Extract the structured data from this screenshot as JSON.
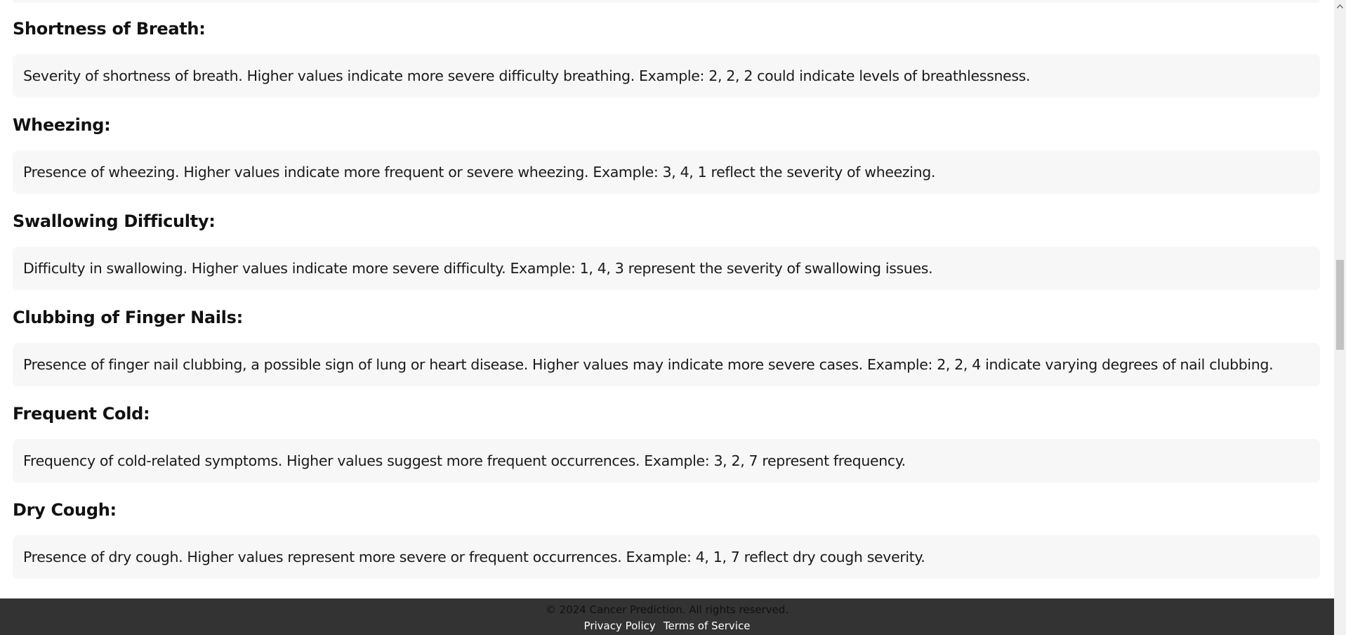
{
  "sections": [
    {
      "title": "Shortness of Breath:",
      "description": "Severity of shortness of breath. Higher values indicate more severe difficulty breathing. Example: 2, 2, 2 could indicate levels of breathlessness."
    },
    {
      "title": "Wheezing:",
      "description": "Presence of wheezing. Higher values indicate more frequent or severe wheezing. Example: 3, 4, 1 reflect the severity of wheezing."
    },
    {
      "title": "Swallowing Difficulty:",
      "description": "Difficulty in swallowing. Higher values indicate more severe difficulty. Example: 1, 4, 3 represent the severity of swallowing issues."
    },
    {
      "title": "Clubbing of Finger Nails:",
      "description": "Presence of finger nail clubbing, a possible sign of lung or heart disease. Higher values may indicate more severe cases. Example: 2, 2, 4 indicate varying degrees of nail clubbing."
    },
    {
      "title": "Frequent Cold:",
      "description": "Frequency of cold-related symptoms. Higher values suggest more frequent occurrences. Example: 3, 2, 7 represent frequency."
    },
    {
      "title": "Dry Cough:",
      "description": "Presence of dry cough. Higher values represent more severe or frequent occurrences. Example: 4, 1, 7 reflect dry cough severity."
    }
  ],
  "footer": {
    "copyright": "© 2024 Cancer Prediction. All rights reserved.",
    "privacy_label": "Privacy Policy",
    "separator": "|",
    "terms_label": "Terms of Service"
  },
  "scrollbar": {
    "scroll_position_fraction": 0.49
  },
  "icons": {
    "scroll_up": "chevron-up-icon"
  },
  "colors": {
    "footer_background": "#333333",
    "description_background": "#f7f7f7"
  }
}
